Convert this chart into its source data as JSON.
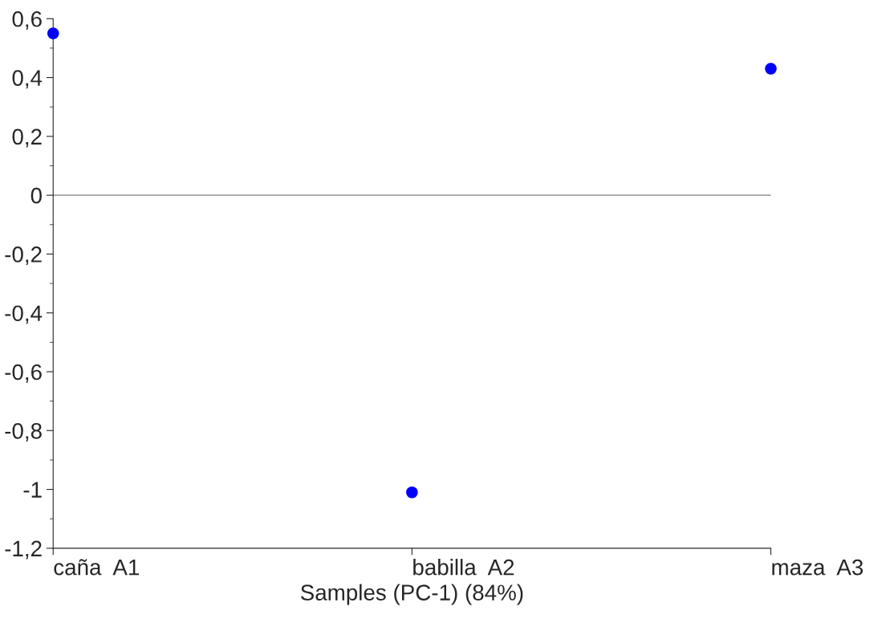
{
  "chart_data": {
    "type": "scatter",
    "xlabel": "Samples (PC-1) (84%)",
    "categories": [
      "caña  A1",
      "babilla  A2",
      "maza  A3"
    ],
    "series": [
      {
        "color": "#0000ff",
        "values": [
          0.55,
          -1.01,
          0.43
        ]
      }
    ],
    "ylim": [
      -1.2,
      0.6
    ],
    "yticks": [
      {
        "value": -1.2,
        "label": "-1,2"
      },
      {
        "value": -1.0,
        "label": "-1"
      },
      {
        "value": -0.8,
        "label": "-0,8"
      },
      {
        "value": -0.6,
        "label": "-0,6"
      },
      {
        "value": -0.4,
        "label": "-0,4"
      },
      {
        "value": -0.2,
        "label": "-0,2"
      },
      0,
      {
        "value": 0.2,
        "label": "0,2"
      },
      {
        "value": 0.4,
        "label": "0,4"
      },
      {
        "value": 0.6,
        "label": "0,6"
      }
    ],
    "ref_lines": [
      {
        "axis": "y",
        "value": 0,
        "color": "#808080"
      }
    ],
    "marker": "circle",
    "grid": false,
    "legend": false
  }
}
